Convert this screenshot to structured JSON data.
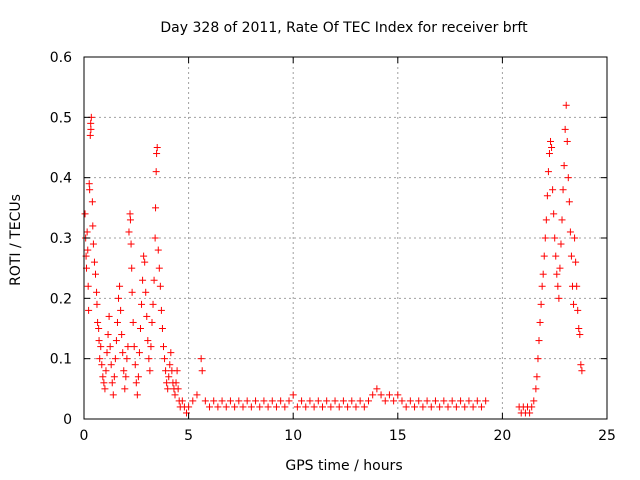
{
  "chart_data": {
    "type": "scatter",
    "title": "Day 328 of 2011, Rate Of TEC Index for receiver brft",
    "xlabel": "GPS time / hours",
    "ylabel": "ROTI / TECUs",
    "xlim": [
      0,
      25
    ],
    "ylim": [
      0,
      0.6
    ],
    "xticks": [
      0,
      5,
      10,
      15,
      20,
      25
    ],
    "yticks": [
      0,
      0.1,
      0.2,
      0.3,
      0.4,
      0.5,
      0.6
    ],
    "xtick_labels": [
      "0",
      "5",
      "10",
      "15",
      "20",
      "25"
    ],
    "ytick_labels": [
      "0",
      "0.1",
      "0.2",
      "0.3",
      "0.4",
      "0.5",
      "0.6"
    ],
    "grid": true,
    "marker": "+",
    "series": [
      {
        "name": "ROTI",
        "color": "#ff0000",
        "points": [
          [
            0.05,
            0.34
          ],
          [
            0.08,
            0.3
          ],
          [
            0.1,
            0.27
          ],
          [
            0.12,
            0.25
          ],
          [
            0.15,
            0.31
          ],
          [
            0.18,
            0.28
          ],
          [
            0.2,
            0.22
          ],
          [
            0.22,
            0.18
          ],
          [
            0.25,
            0.39
          ],
          [
            0.27,
            0.38
          ],
          [
            0.3,
            0.47
          ],
          [
            0.32,
            0.49
          ],
          [
            0.35,
            0.5
          ],
          [
            0.33,
            0.48
          ],
          [
            0.4,
            0.36
          ],
          [
            0.42,
            0.32
          ],
          [
            0.45,
            0.29
          ],
          [
            0.5,
            0.26
          ],
          [
            0.55,
            0.24
          ],
          [
            0.6,
            0.21
          ],
          [
            0.62,
            0.19
          ],
          [
            0.65,
            0.16
          ],
          [
            0.7,
            0.15
          ],
          [
            0.72,
            0.13
          ],
          [
            0.75,
            0.1
          ],
          [
            0.8,
            0.12
          ],
          [
            0.85,
            0.09
          ],
          [
            0.9,
            0.07
          ],
          [
            0.95,
            0.06
          ],
          [
            1.0,
            0.05
          ],
          [
            1.05,
            0.08
          ],
          [
            1.1,
            0.11
          ],
          [
            1.15,
            0.14
          ],
          [
            1.2,
            0.17
          ],
          [
            1.25,
            0.12
          ],
          [
            1.3,
            0.09
          ],
          [
            1.35,
            0.06
          ],
          [
            1.4,
            0.04
          ],
          [
            1.45,
            0.07
          ],
          [
            1.5,
            0.1
          ],
          [
            1.55,
            0.13
          ],
          [
            1.6,
            0.16
          ],
          [
            1.65,
            0.2
          ],
          [
            1.7,
            0.22
          ],
          [
            1.75,
            0.18
          ],
          [
            1.8,
            0.14
          ],
          [
            1.85,
            0.11
          ],
          [
            1.9,
            0.08
          ],
          [
            1.95,
            0.05
          ],
          [
            2.0,
            0.07
          ],
          [
            2.05,
            0.1
          ],
          [
            2.1,
            0.12
          ],
          [
            2.15,
            0.31
          ],
          [
            2.2,
            0.34
          ],
          [
            2.22,
            0.33
          ],
          [
            2.25,
            0.29
          ],
          [
            2.28,
            0.25
          ],
          [
            2.3,
            0.21
          ],
          [
            2.35,
            0.16
          ],
          [
            2.4,
            0.12
          ],
          [
            2.45,
            0.09
          ],
          [
            2.5,
            0.06
          ],
          [
            2.55,
            0.04
          ],
          [
            2.6,
            0.07
          ],
          [
            2.65,
            0.11
          ],
          [
            2.7,
            0.15
          ],
          [
            2.75,
            0.19
          ],
          [
            2.8,
            0.23
          ],
          [
            2.85,
            0.27
          ],
          [
            2.9,
            0.26
          ],
          [
            2.95,
            0.21
          ],
          [
            3.0,
            0.17
          ],
          [
            3.05,
            0.13
          ],
          [
            3.1,
            0.1
          ],
          [
            3.15,
            0.08
          ],
          [
            3.2,
            0.12
          ],
          [
            3.25,
            0.16
          ],
          [
            3.3,
            0.19
          ],
          [
            3.35,
            0.23
          ],
          [
            3.4,
            0.3
          ],
          [
            3.42,
            0.35
          ],
          [
            3.45,
            0.41
          ],
          [
            3.47,
            0.44
          ],
          [
            3.5,
            0.45
          ],
          [
            3.55,
            0.28
          ],
          [
            3.6,
            0.25
          ],
          [
            3.65,
            0.22
          ],
          [
            3.7,
            0.18
          ],
          [
            3.75,
            0.15
          ],
          [
            3.8,
            0.12
          ],
          [
            3.85,
            0.1
          ],
          [
            3.9,
            0.08
          ],
          [
            3.95,
            0.06
          ],
          [
            4.0,
            0.05
          ],
          [
            4.05,
            0.07
          ],
          [
            4.1,
            0.09
          ],
          [
            4.15,
            0.11
          ],
          [
            4.2,
            0.08
          ],
          [
            4.25,
            0.06
          ],
          [
            4.3,
            0.05
          ],
          [
            4.35,
            0.04
          ],
          [
            4.4,
            0.06
          ],
          [
            4.45,
            0.08
          ],
          [
            4.5,
            0.05
          ],
          [
            4.55,
            0.03
          ],
          [
            4.6,
            0.02
          ],
          [
            4.7,
            0.03
          ],
          [
            4.8,
            0.02
          ],
          [
            4.9,
            0.01
          ],
          [
            5.0,
            0.02
          ],
          [
            5.2,
            0.03
          ],
          [
            5.4,
            0.04
          ],
          [
            5.6,
            0.1
          ],
          [
            5.65,
            0.08
          ],
          [
            5.8,
            0.03
          ],
          [
            6.0,
            0.02
          ],
          [
            6.2,
            0.03
          ],
          [
            6.4,
            0.02
          ],
          [
            6.6,
            0.03
          ],
          [
            6.8,
            0.02
          ],
          [
            7.0,
            0.03
          ],
          [
            7.2,
            0.02
          ],
          [
            7.4,
            0.03
          ],
          [
            7.6,
            0.02
          ],
          [
            7.8,
            0.03
          ],
          [
            8.0,
            0.02
          ],
          [
            8.2,
            0.03
          ],
          [
            8.4,
            0.02
          ],
          [
            8.6,
            0.03
          ],
          [
            8.8,
            0.02
          ],
          [
            9.0,
            0.03
          ],
          [
            9.2,
            0.02
          ],
          [
            9.4,
            0.03
          ],
          [
            9.6,
            0.02
          ],
          [
            9.8,
            0.03
          ],
          [
            10.0,
            0.04
          ],
          [
            10.2,
            0.02
          ],
          [
            10.4,
            0.03
          ],
          [
            10.6,
            0.02
          ],
          [
            10.8,
            0.03
          ],
          [
            11.0,
            0.02
          ],
          [
            11.2,
            0.03
          ],
          [
            11.4,
            0.02
          ],
          [
            11.6,
            0.03
          ],
          [
            11.8,
            0.02
          ],
          [
            12.0,
            0.03
          ],
          [
            12.2,
            0.02
          ],
          [
            12.4,
            0.03
          ],
          [
            12.6,
            0.02
          ],
          [
            12.8,
            0.03
          ],
          [
            13.0,
            0.02
          ],
          [
            13.2,
            0.03
          ],
          [
            13.4,
            0.02
          ],
          [
            13.6,
            0.03
          ],
          [
            13.8,
            0.04
          ],
          [
            14.0,
            0.05
          ],
          [
            14.2,
            0.04
          ],
          [
            14.4,
            0.03
          ],
          [
            14.6,
            0.04
          ],
          [
            14.8,
            0.03
          ],
          [
            15.0,
            0.04
          ],
          [
            15.2,
            0.03
          ],
          [
            15.4,
            0.02
          ],
          [
            15.6,
            0.03
          ],
          [
            15.8,
            0.02
          ],
          [
            16.0,
            0.03
          ],
          [
            16.2,
            0.02
          ],
          [
            16.4,
            0.03
          ],
          [
            16.6,
            0.02
          ],
          [
            16.8,
            0.03
          ],
          [
            17.0,
            0.02
          ],
          [
            17.2,
            0.03
          ],
          [
            17.4,
            0.02
          ],
          [
            17.6,
            0.03
          ],
          [
            17.8,
            0.02
          ],
          [
            18.0,
            0.03
          ],
          [
            18.2,
            0.02
          ],
          [
            18.4,
            0.03
          ],
          [
            18.6,
            0.02
          ],
          [
            18.8,
            0.03
          ],
          [
            19.0,
            0.02
          ],
          [
            19.2,
            0.03
          ],
          [
            20.8,
            0.02
          ],
          [
            20.9,
            0.01
          ],
          [
            21.0,
            0.02
          ],
          [
            21.1,
            0.01
          ],
          [
            21.2,
            0.02
          ],
          [
            21.3,
            0.01
          ],
          [
            21.4,
            0.02
          ],
          [
            21.5,
            0.03
          ],
          [
            21.6,
            0.05
          ],
          [
            21.65,
            0.07
          ],
          [
            21.7,
            0.1
          ],
          [
            21.75,
            0.13
          ],
          [
            21.8,
            0.16
          ],
          [
            21.85,
            0.19
          ],
          [
            21.9,
            0.22
          ],
          [
            21.95,
            0.24
          ],
          [
            22.0,
            0.27
          ],
          [
            22.05,
            0.3
          ],
          [
            22.1,
            0.33
          ],
          [
            22.15,
            0.37
          ],
          [
            22.2,
            0.41
          ],
          [
            22.25,
            0.44
          ],
          [
            22.3,
            0.46
          ],
          [
            22.35,
            0.45
          ],
          [
            22.4,
            0.38
          ],
          [
            22.45,
            0.34
          ],
          [
            22.5,
            0.3
          ],
          [
            22.55,
            0.27
          ],
          [
            22.6,
            0.24
          ],
          [
            22.65,
            0.22
          ],
          [
            22.7,
            0.2
          ],
          [
            22.75,
            0.25
          ],
          [
            22.8,
            0.29
          ],
          [
            22.85,
            0.33
          ],
          [
            22.9,
            0.38
          ],
          [
            22.95,
            0.42
          ],
          [
            23.0,
            0.48
          ],
          [
            23.05,
            0.52
          ],
          [
            23.1,
            0.46
          ],
          [
            23.15,
            0.4
          ],
          [
            23.2,
            0.36
          ],
          [
            23.25,
            0.31
          ],
          [
            23.3,
            0.27
          ],
          [
            23.35,
            0.22
          ],
          [
            23.4,
            0.19
          ],
          [
            23.45,
            0.3
          ],
          [
            23.5,
            0.26
          ],
          [
            23.55,
            0.22
          ],
          [
            23.6,
            0.18
          ],
          [
            23.65,
            0.15
          ],
          [
            23.7,
            0.14
          ],
          [
            23.75,
            0.09
          ],
          [
            23.8,
            0.08
          ]
        ]
      }
    ]
  }
}
